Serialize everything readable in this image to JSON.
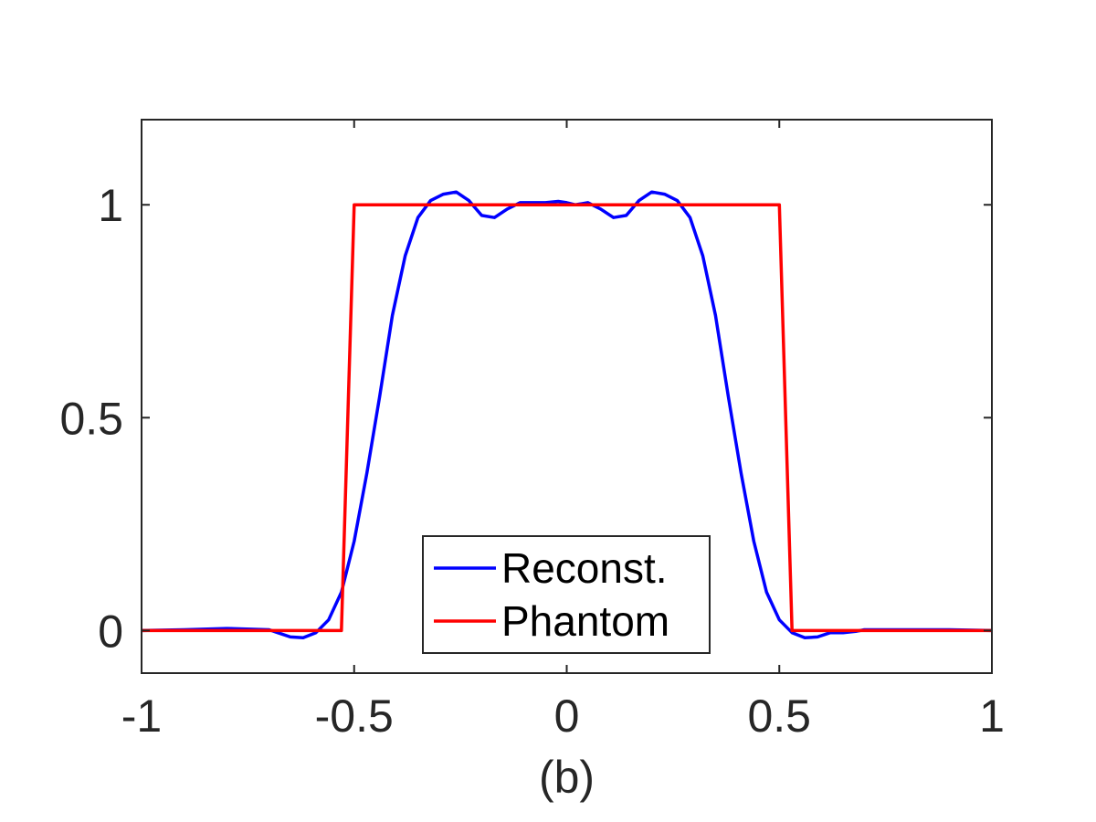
{
  "chart_data": {
    "type": "line",
    "title": "",
    "xlabel": "(b)",
    "ylabel": "",
    "xlim": [
      -1,
      1
    ],
    "ylim": [
      -0.1,
      1.2
    ],
    "xticks": [
      -1,
      -0.5,
      0,
      0.5,
      1
    ],
    "xtick_labels": [
      "-1",
      "-0.5",
      "0",
      "0.5",
      "1"
    ],
    "yticks": [
      0,
      0.5,
      1
    ],
    "ytick_labels": [
      "0",
      "0.5",
      "1"
    ],
    "grid": false,
    "box": true,
    "legend": {
      "position": "bottom-center",
      "entries": [
        "Reconst.",
        "Phantom"
      ]
    },
    "series": [
      {
        "name": "Reconst.",
        "color": "#0000ff",
        "x": [
          -1,
          -0.9,
          -0.8,
          -0.7,
          -0.68,
          -0.65,
          -0.62,
          -0.59,
          -0.56,
          -0.53,
          -0.5,
          -0.47,
          -0.44,
          -0.41,
          -0.38,
          -0.35,
          -0.32,
          -0.29,
          -0.26,
          -0.23,
          -0.2,
          -0.17,
          -0.14,
          -0.11,
          -0.08,
          -0.05,
          -0.02,
          0,
          0.02,
          0.05,
          0.08,
          0.11,
          0.14,
          0.17,
          0.2,
          0.23,
          0.26,
          0.29,
          0.32,
          0.35,
          0.38,
          0.41,
          0.44,
          0.47,
          0.5,
          0.53,
          0.56,
          0.59,
          0.62,
          0.65,
          0.68,
          0.7,
          0.8,
          0.9,
          1
        ],
        "y": [
          0,
          0.002,
          0.005,
          0.002,
          -0.005,
          -0.015,
          -0.017,
          -0.005,
          0.025,
          0.09,
          0.21,
          0.37,
          0.55,
          0.74,
          0.88,
          0.97,
          1.01,
          1.025,
          1.03,
          1.01,
          0.975,
          0.97,
          0.99,
          1.005,
          1.005,
          1.005,
          1.008,
          1.005,
          1.0,
          1.005,
          0.99,
          0.97,
          0.975,
          1.01,
          1.03,
          1.025,
          1.01,
          0.97,
          0.88,
          0.74,
          0.55,
          0.37,
          0.21,
          0.09,
          0.025,
          -0.005,
          -0.017,
          -0.015,
          -0.005,
          -0.005,
          -0.002,
          0.002,
          0.002,
          0.002,
          0
        ]
      },
      {
        "name": "Phantom",
        "color": "#ff0000",
        "x": [
          -1,
          -0.53,
          -0.5,
          0.5,
          0.53,
          1
        ],
        "y": [
          0,
          0,
          1,
          1,
          0,
          0
        ]
      }
    ]
  }
}
